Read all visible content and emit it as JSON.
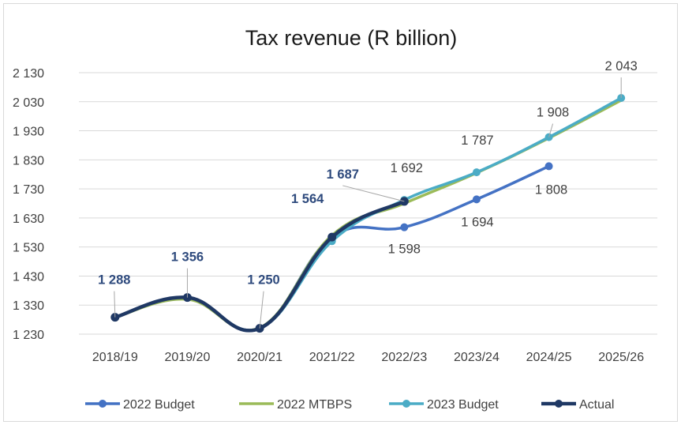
{
  "chart_data": {
    "type": "line",
    "title": "Tax revenue (R billion)",
    "xlabel": "",
    "ylabel": "",
    "categories": [
      "2018/19",
      "2019/20",
      "2020/21",
      "2021/22",
      "2022/23",
      "2023/24",
      "2024/25",
      "2025/26"
    ],
    "y_ticks": [
      "1 230",
      "1 330",
      "1 430",
      "1 530",
      "1 630",
      "1 730",
      "1 830",
      "1 930",
      "2 030",
      "2 130"
    ],
    "ylim": [
      1230,
      2130
    ],
    "grid": true,
    "legend": "bottom",
    "series": [
      {
        "name": "2022 Budget",
        "color": "#4472c4",
        "values": [
          1288,
          1355,
          1250,
          1564,
          1598,
          1694,
          1808,
          null
        ]
      },
      {
        "name": "2022 MTBPS",
        "color": "#9bbb59",
        "values": [
          1288,
          1350,
          1252,
          1570,
          1680,
          1785,
          1905,
          2035
        ]
      },
      {
        "name": "2023 Budget",
        "color": "#4bacc6",
        "values": [
          1288,
          1356,
          1250,
          1550,
          1692,
          1787,
          1908,
          2043
        ]
      },
      {
        "name": "Actual",
        "color": "#1f3864",
        "values": [
          1288,
          1356,
          1250,
          1564,
          1687,
          null,
          null,
          null
        ]
      }
    ],
    "data_labels": [
      {
        "text": "1 288",
        "series": "Actual",
        "index": 0,
        "style": "bold"
      },
      {
        "text": "1 356",
        "series": "Actual",
        "index": 1,
        "style": "bold"
      },
      {
        "text": "1 250",
        "series": "Actual",
        "index": 2,
        "style": "bold"
      },
      {
        "text": "1 564",
        "series": "Actual",
        "index": 3,
        "style": "bold"
      },
      {
        "text": "1 687",
        "series": "Actual",
        "index": 4,
        "style": "bold"
      },
      {
        "text": "1 692",
        "series": "2023 Budget",
        "index": 4,
        "style": "normal"
      },
      {
        "text": "1 787",
        "series": "2023 Budget",
        "index": 5,
        "style": "normal"
      },
      {
        "text": "1 908",
        "series": "2023 Budget",
        "index": 6,
        "style": "normal"
      },
      {
        "text": "2 043",
        "series": "2023 Budget",
        "index": 7,
        "style": "normal"
      },
      {
        "text": "1 598",
        "series": "2022 Budget",
        "index": 4,
        "style": "normal"
      },
      {
        "text": "1 694",
        "series": "2022 Budget",
        "index": 5,
        "style": "normal"
      },
      {
        "text": "1 808",
        "series": "2022 Budget",
        "index": 6,
        "style": "normal"
      }
    ]
  }
}
